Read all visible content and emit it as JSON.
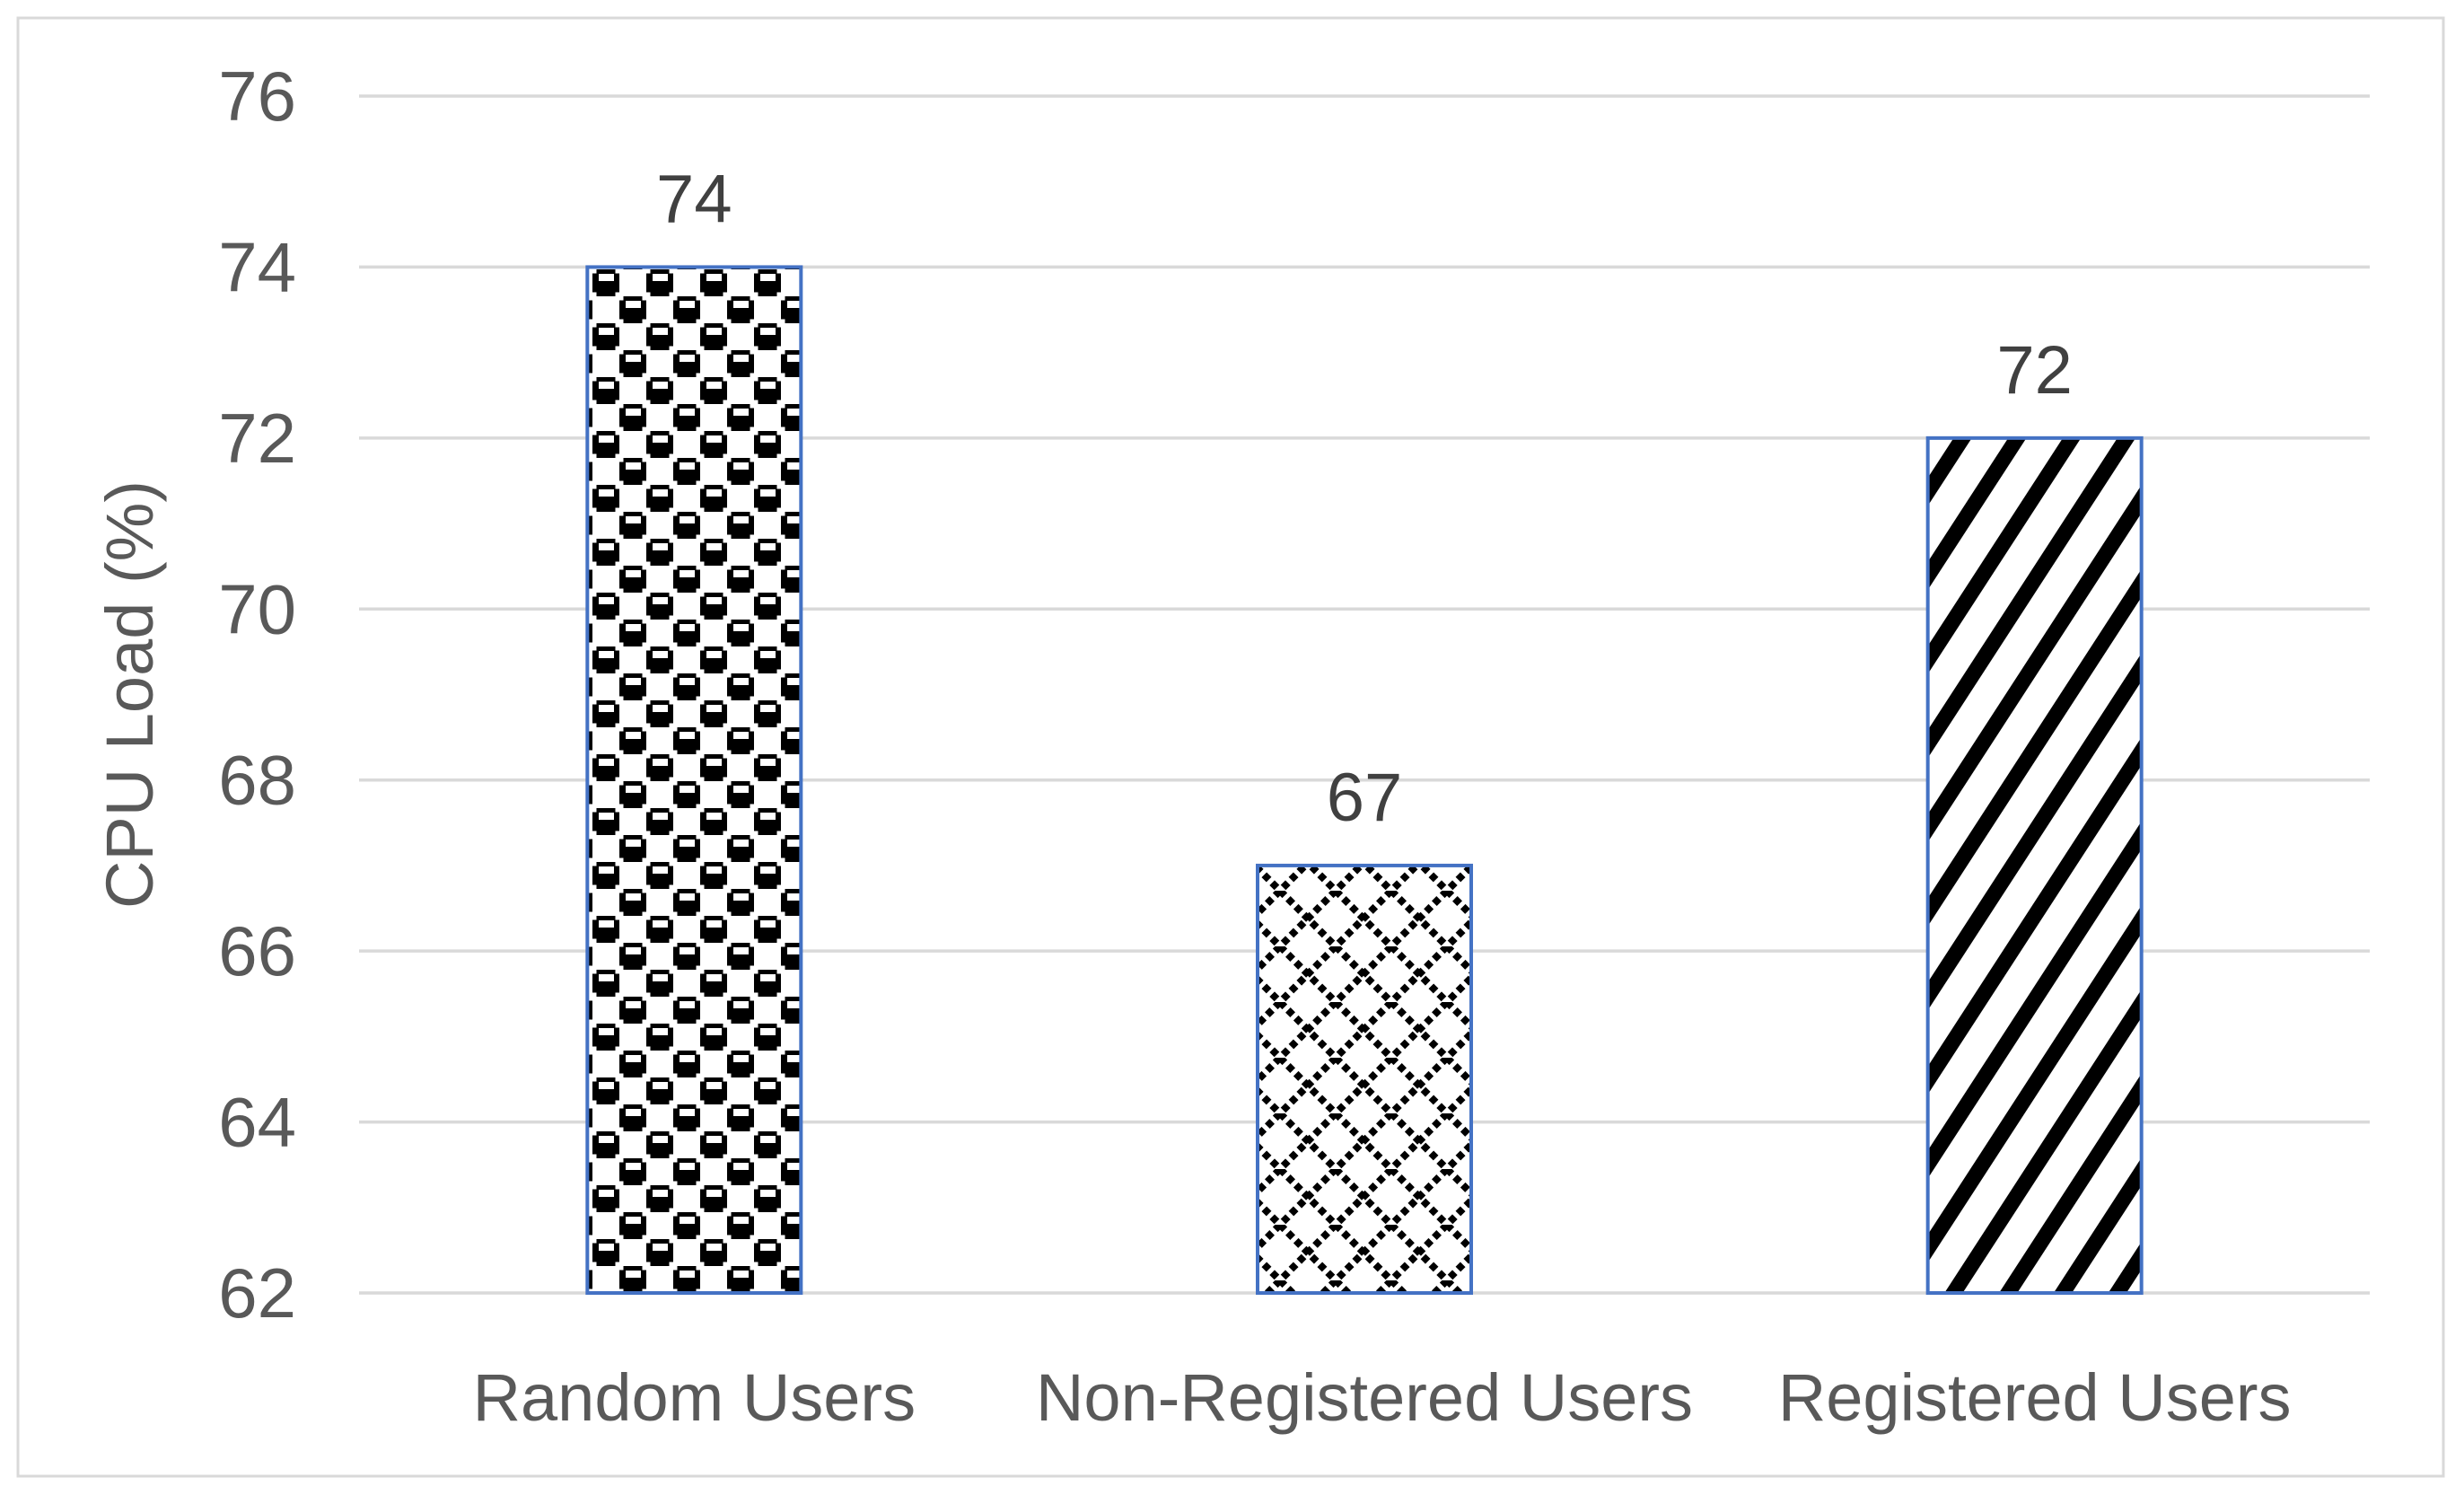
{
  "figure": {
    "background": "#ffffff",
    "border_color": "#d9d9d9"
  },
  "chart_data": {
    "type": "bar",
    "title": "",
    "categories": [
      "Random Users",
      "Non-Registered Users",
      "Registered Users"
    ],
    "values": [
      74,
      67,
      72
    ],
    "data_labels": [
      "74",
      "67",
      "72"
    ],
    "xlabel": "",
    "ylabel": "CPU Load (%)",
    "ylim": [
      62,
      76
    ],
    "yticks": [
      76,
      74,
      72,
      70,
      68,
      66,
      64,
      62
    ],
    "ytick_labels": [
      "76",
      "74",
      "72",
      "70",
      "68",
      "66",
      "64",
      "62"
    ],
    "grid": "horizontal",
    "legend_position": "none",
    "bar_patterns": [
      "sphere-checker",
      "dotted-diamond",
      "wide-upward-diagonal"
    ],
    "bar_border_color": "#4472c4",
    "pattern_foreground": "#000000",
    "pattern_background": "#ffffff",
    "gridline_color": "#d9d9d9",
    "tick_label_color": "#595959",
    "category_label_color": "#595959",
    "data_label_color": "#404040",
    "axis_title_color": "#595959"
  }
}
